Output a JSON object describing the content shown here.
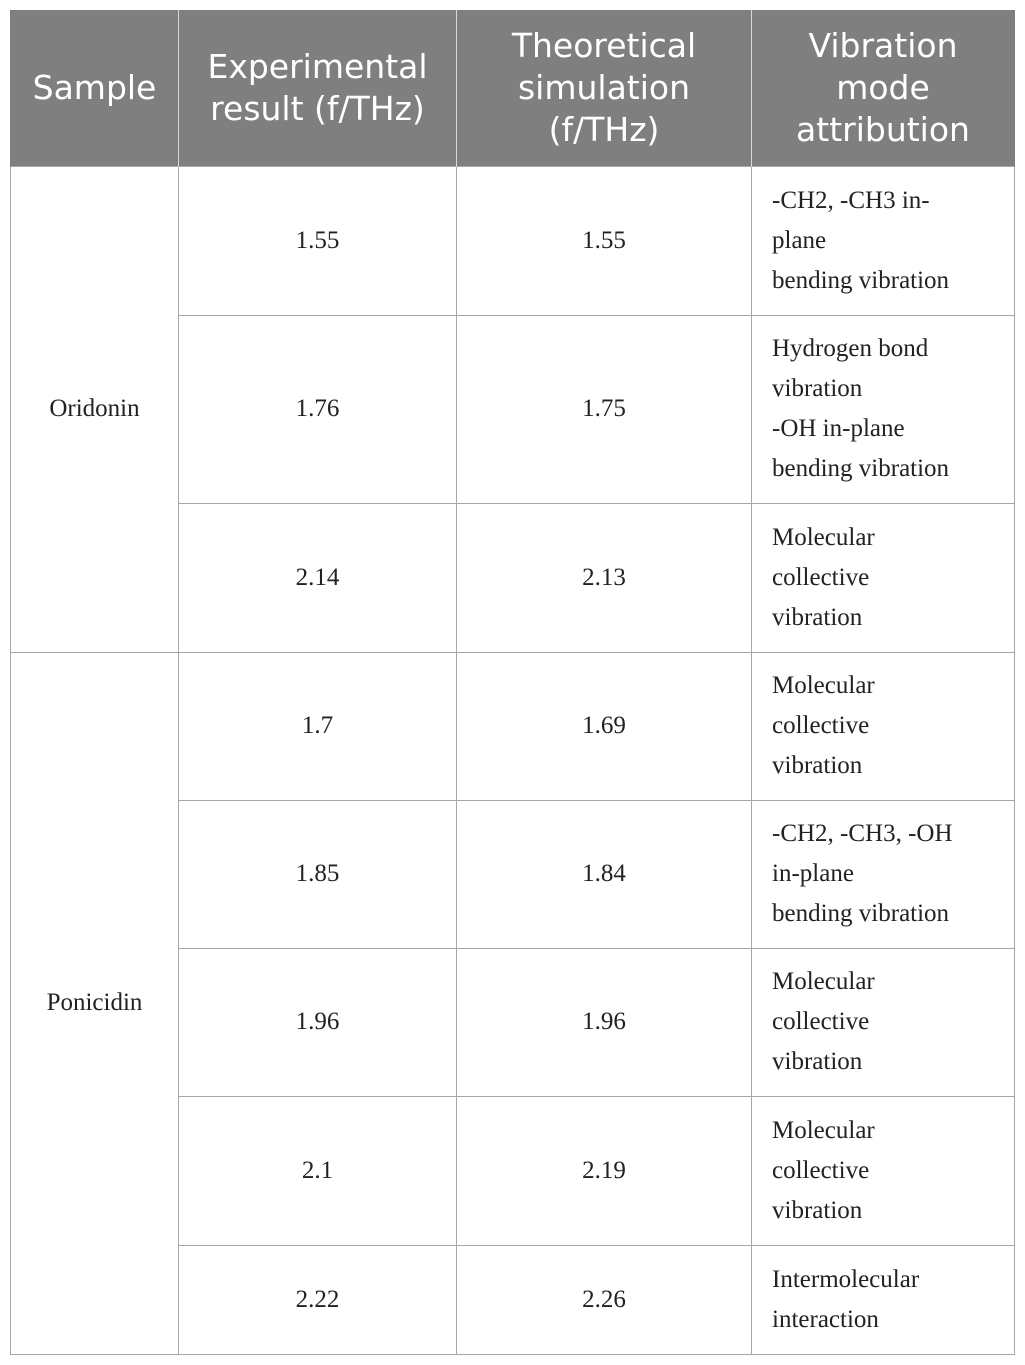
{
  "table": {
    "headers": [
      [
        "Sample"
      ],
      [
        "Experimental",
        "result (f/THz)"
      ],
      [
        "Theoretical",
        "simulation",
        "(f/THz)"
      ],
      [
        "Vibration",
        "mode",
        "attribution"
      ]
    ],
    "groups": [
      {
        "sample": "Oridonin",
        "rows": [
          {
            "experimental": "1.55",
            "theoretical": "1.55",
            "mode": [
              "-CH2, -CH3 in-",
              "plane",
              "bending vibration"
            ]
          },
          {
            "experimental": "1.76",
            "theoretical": "1.75",
            "mode": [
              "Hydrogen bond",
              "vibration",
              "-OH in-plane",
              "bending vibration"
            ]
          },
          {
            "experimental": "2.14",
            "theoretical": "2.13",
            "mode": [
              "Molecular",
              "collective",
              "vibration"
            ]
          }
        ]
      },
      {
        "sample": "Ponicidin",
        "rows": [
          {
            "experimental": "1.7",
            "theoretical": "1.69",
            "mode": [
              "Molecular",
              "collective",
              "vibration"
            ]
          },
          {
            "experimental": "1.85",
            "theoretical": "1.84",
            "mode": [
              "-CH2, -CH3, -OH",
              "in-plane",
              "bending vibration"
            ]
          },
          {
            "experimental": "1.96",
            "theoretical": "1.96",
            "mode": [
              "Molecular",
              "collective",
              "vibration"
            ]
          },
          {
            "experimental": "2.1",
            "theoretical": "2.19",
            "mode": [
              "Molecular",
              "collective",
              "vibration"
            ]
          },
          {
            "experimental": "2.22",
            "theoretical": "2.26",
            "mode": [
              "Intermolecular",
              "interaction"
            ]
          }
        ]
      }
    ]
  }
}
